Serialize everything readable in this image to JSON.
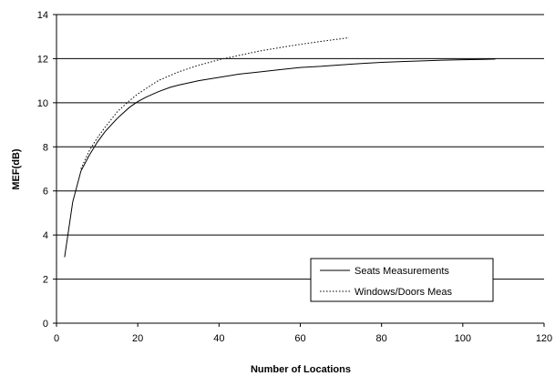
{
  "chart_data": {
    "type": "line",
    "xlabel": "Number of Locations",
    "ylabel": "MEF(dB)",
    "xlim": [
      0,
      120
    ],
    "ylim": [
      0,
      14
    ],
    "x_ticks": [
      0,
      20,
      40,
      60,
      80,
      100,
      120
    ],
    "y_ticks": [
      0,
      2,
      4,
      6,
      8,
      10,
      12,
      14
    ],
    "grid": "horizontal",
    "legend_position": "bottom-right",
    "series": [
      {
        "name": "Seats Measurements",
        "style": "solid",
        "color": "#000000",
        "x": [
          2,
          4,
          6,
          8,
          10,
          12,
          15,
          18,
          20,
          22,
          25,
          28,
          30,
          35,
          40,
          45,
          50,
          55,
          60,
          65,
          70,
          75,
          80,
          85,
          90,
          95,
          100,
          105,
          108
        ],
        "y": [
          3.0,
          5.5,
          6.9,
          7.6,
          8.2,
          8.7,
          9.3,
          9.8,
          10.05,
          10.25,
          10.5,
          10.7,
          10.8,
          11.0,
          11.15,
          11.3,
          11.4,
          11.5,
          11.6,
          11.65,
          11.72,
          11.78,
          11.83,
          11.87,
          11.9,
          11.93,
          11.95,
          11.97,
          11.98
        ]
      },
      {
        "name": "Windows/Doors Meas",
        "style": "dotted",
        "color": "#000000",
        "x": [
          6,
          8,
          10,
          12,
          15,
          18,
          20,
          25,
          30,
          35,
          40,
          45,
          50,
          55,
          60,
          65,
          70,
          72
        ],
        "y": [
          7.0,
          7.8,
          8.4,
          8.9,
          9.6,
          10.1,
          10.4,
          11.0,
          11.4,
          11.7,
          11.95,
          12.15,
          12.35,
          12.5,
          12.65,
          12.78,
          12.9,
          12.95
        ]
      }
    ]
  }
}
